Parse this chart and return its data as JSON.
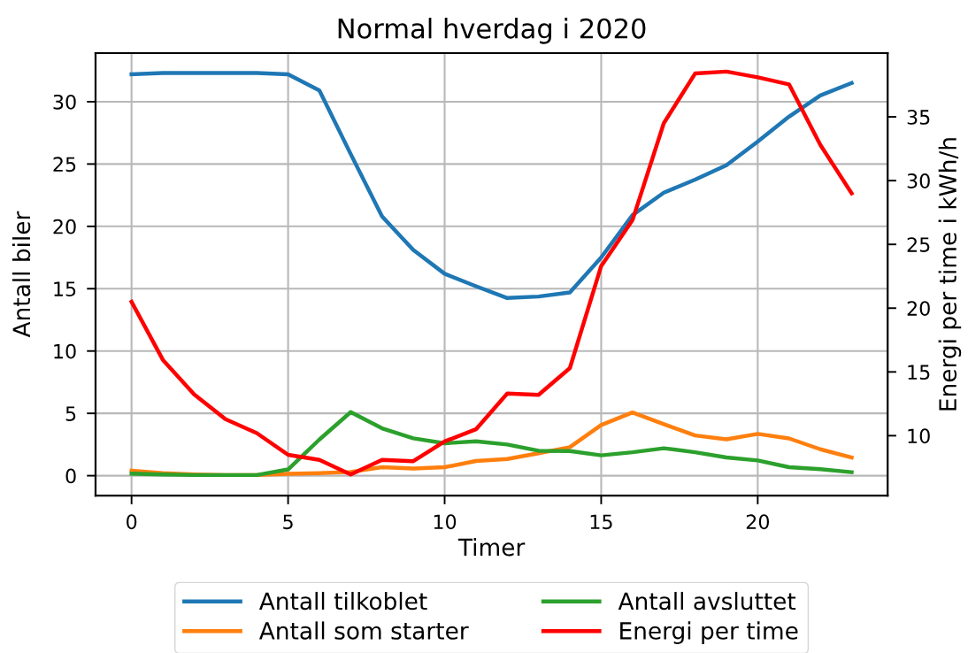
{
  "chart_data": {
    "type": "line",
    "title": "Normal hverdag i 2020",
    "xlabel": "Timer",
    "ylabel": "Antall biler",
    "y2label": "Energi per time i kWh/h",
    "x": [
      0,
      1,
      2,
      3,
      4,
      5,
      6,
      7,
      8,
      9,
      10,
      11,
      12,
      13,
      14,
      15,
      16,
      17,
      18,
      19,
      20,
      21,
      22,
      23
    ],
    "series": [
      {
        "name": "Antall tilkoblet",
        "color": "#1f77b4",
        "values": [
          32.2,
          32.3,
          32.3,
          32.3,
          32.3,
          32.2,
          30.9,
          25.8,
          20.8,
          18.1,
          16.2,
          15.2,
          14.25,
          14.37,
          14.7,
          17.5,
          20.9,
          22.7,
          23.75,
          24.9,
          26.8,
          28.8,
          30.5,
          31.5
        ]
      },
      {
        "name": "Antall som starter",
        "color": "#ff7f0e",
        "values": [
          0.4,
          0.2,
          0.1,
          0.05,
          0.05,
          0.15,
          0.2,
          0.3,
          0.68,
          0.57,
          0.68,
          1.18,
          1.34,
          1.8,
          2.29,
          4.06,
          5.07,
          4.13,
          3.23,
          2.92,
          3.35,
          2.99,
          2.12,
          1.46
        ]
      },
      {
        "name": "Antall avsluttet",
        "color": "#2ca02c",
        "values": [
          0.16,
          0.1,
          0.05,
          0.05,
          0.05,
          0.5,
          2.9,
          5.1,
          3.8,
          3.0,
          2.6,
          2.76,
          2.5,
          2.0,
          1.98,
          1.63,
          1.88,
          2.2,
          1.88,
          1.46,
          1.22,
          0.68,
          0.52,
          0.28
        ]
      },
      {
        "name": "Energi per time",
        "color": "#ff0000",
        "axis": "y2",
        "values": [
          20.5,
          15.95,
          13.24,
          11.3,
          10.2,
          8.5,
          8.1,
          6.95,
          8.1,
          8.0,
          9.55,
          10.5,
          13.3,
          13.2,
          15.3,
          23.3,
          26.9,
          34.5,
          38.4,
          38.55,
          38.1,
          37.55,
          32.8,
          29.0
        ]
      }
    ],
    "xlim": [
      -1.15,
      24.15
    ],
    "xticks": [
      0,
      5,
      10,
      15,
      20
    ],
    "ylim": [
      -1.6,
      33.9
    ],
    "yticks": [
      0,
      5,
      10,
      15,
      20,
      25,
      30
    ],
    "y2lim": [
      5.3,
      40.0
    ],
    "y2ticks": [
      10,
      15,
      20,
      25,
      30,
      35
    ],
    "grid": true,
    "legend": "bottom"
  }
}
